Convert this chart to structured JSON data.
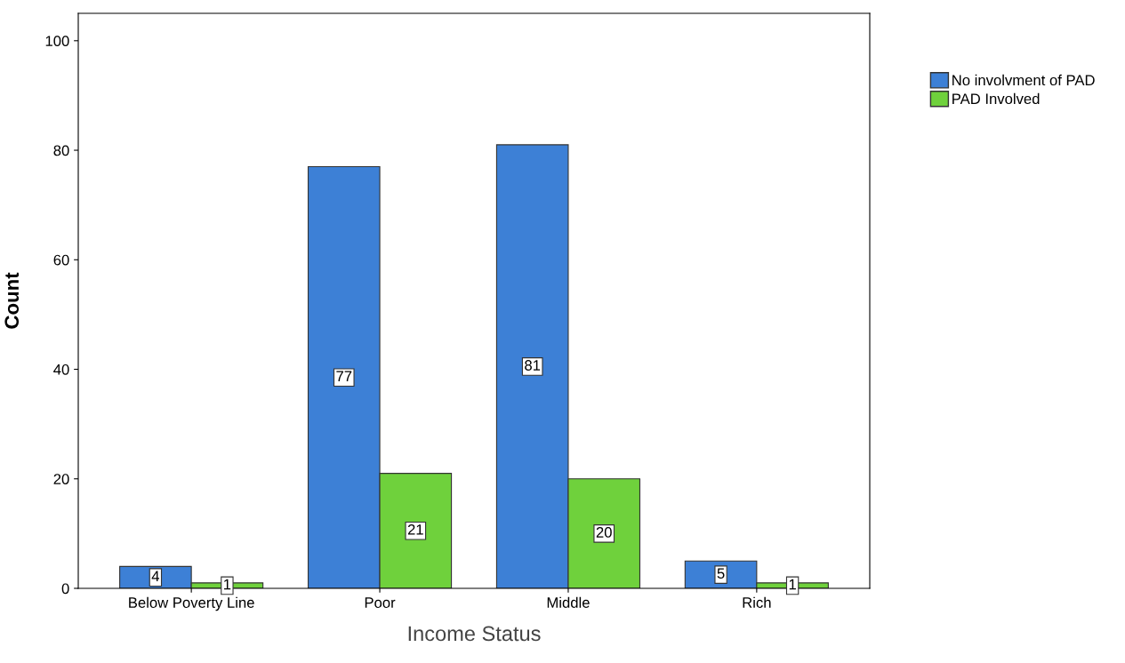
{
  "chart_data": {
    "type": "bar",
    "xlabel": "Income Status",
    "ylabel": "Count",
    "categories": [
      "Below Poverty Line",
      "Poor",
      "Middle",
      "Rich"
    ],
    "series": [
      {
        "name": "No involvment of PAD",
        "color": "#3d80d6",
        "values": [
          4,
          77,
          81,
          5
        ]
      },
      {
        "name": "PAD Involved",
        "color": "#6fd13c",
        "values": [
          1,
          21,
          20,
          1
        ]
      }
    ],
    "ylim": [
      0,
      105
    ],
    "yticks": [
      0,
      20,
      40,
      60,
      80,
      100
    ],
    "data_labels": true,
    "grid": false,
    "legend": "top right"
  }
}
